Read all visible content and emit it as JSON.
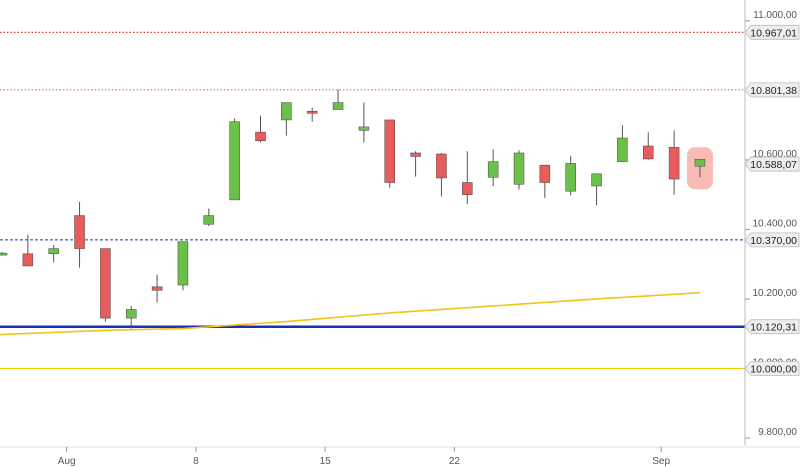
{
  "chart_data": {
    "type": "candlestick",
    "ylim": [
      9780,
      11060
    ],
    "y_ticks": [
      {
        "value": 9800,
        "label": "9.800,00"
      },
      {
        "value": 10000,
        "label": "10.000,00"
      },
      {
        "value": 10200,
        "label": "10.200,00"
      },
      {
        "value": 10400,
        "label": "10.400,00"
      },
      {
        "value": 10600,
        "label": "10.600,00"
      },
      {
        "value": 11000,
        "label": "11.000,00"
      }
    ],
    "x_ticks": [
      {
        "index": 2.5,
        "label": "Aug"
      },
      {
        "index": 7.5,
        "label": "8"
      },
      {
        "index": 12.5,
        "label": "15"
      },
      {
        "index": 17.5,
        "label": "22"
      },
      {
        "index": 25.5,
        "label": "Sep"
      }
    ],
    "candles": [
      {
        "o": 10330,
        "h": 10335,
        "l": 10325,
        "c": 10332
      },
      {
        "o": 10330,
        "h": 10385,
        "l": 10300,
        "c": 10295
      },
      {
        "o": 10330,
        "h": 10355,
        "l": 10305,
        "c": 10345
      },
      {
        "o": 10440,
        "h": 10480,
        "l": 10290,
        "c": 10345
      },
      {
        "o": 10345,
        "h": 10345,
        "l": 10135,
        "c": 10145
      },
      {
        "o": 10145,
        "h": 10180,
        "l": 10115,
        "c": 10170
      },
      {
        "o": 10235,
        "h": 10270,
        "l": 10190,
        "c": 10225
      },
      {
        "o": 10240,
        "h": 10365,
        "l": 10225,
        "c": 10365
      },
      {
        "o": 10415,
        "h": 10460,
        "l": 10410,
        "c": 10440
      },
      {
        "o": 10485,
        "h": 10720,
        "l": 10485,
        "c": 10710
      },
      {
        "o": 10680,
        "h": 10727,
        "l": 10650,
        "c": 10655
      },
      {
        "o": 10715,
        "h": 10760,
        "l": 10670,
        "c": 10765
      },
      {
        "o": 10740,
        "h": 10750,
        "l": 10710,
        "c": 10735
      },
      {
        "o": 10745,
        "h": 10802,
        "l": 10745,
        "c": 10765
      },
      {
        "o": 10685,
        "h": 10765,
        "l": 10650,
        "c": 10695
      },
      {
        "o": 10715,
        "h": 10715,
        "l": 10520,
        "c": 10535
      },
      {
        "o": 10620,
        "h": 10625,
        "l": 10552,
        "c": 10610
      },
      {
        "o": 10617,
        "h": 10620,
        "l": 10495,
        "c": 10548
      },
      {
        "o": 10535,
        "h": 10625,
        "l": 10473,
        "c": 10500
      },
      {
        "o": 10550,
        "h": 10630,
        "l": 10525,
        "c": 10595
      },
      {
        "o": 10530,
        "h": 10628,
        "l": 10515,
        "c": 10620
      },
      {
        "o": 10585,
        "h": 10585,
        "l": 10490,
        "c": 10535
      },
      {
        "o": 10510,
        "h": 10612,
        "l": 10498,
        "c": 10590
      },
      {
        "o": 10525,
        "h": 10560,
        "l": 10470,
        "c": 10560
      },
      {
        "o": 10595,
        "h": 10700,
        "l": 10595,
        "c": 10663
      },
      {
        "o": 10640,
        "h": 10680,
        "l": 10600,
        "c": 10603
      },
      {
        "o": 10636,
        "h": 10685,
        "l": 10500,
        "c": 10545
      },
      {
        "o": 10582,
        "h": 10602,
        "l": 10550,
        "c": 10602
      }
    ],
    "moving_average": {
      "color": "#f0c419",
      "points": [
        {
          "index": -1,
          "value": 10095
        },
        {
          "index": 4,
          "value": 10110
        },
        {
          "index": 7,
          "value": 10115
        },
        {
          "index": 11,
          "value": 10135
        },
        {
          "index": 15,
          "value": 10160
        },
        {
          "index": 19,
          "value": 10180
        },
        {
          "index": 23,
          "value": 10200
        },
        {
          "index": 27,
          "value": 10218
        }
      ]
    },
    "levels": [
      {
        "value": 10967.01,
        "label": "10.967,01",
        "color": "#dd2222",
        "style": "dotted",
        "width": 1.2
      },
      {
        "value": 10801.38,
        "label": "10.801,38",
        "color": "#dd2222",
        "style": "dotted",
        "width": 0.8
      },
      {
        "value": 10588.07,
        "label": "10.588,07",
        "color": "none",
        "style": "none",
        "width": 0
      },
      {
        "value": 10370.0,
        "label": "10.370,00",
        "color": "#1a3aa8",
        "style": "dashed",
        "width": 1
      },
      {
        "value": 10120.31,
        "label": "10.120,31",
        "color": "#1a2fb8",
        "style": "solid",
        "width": 2.5
      },
      {
        "value": 10000.0,
        "label": "10.000,00",
        "color": "#f0d000",
        "style": "solid",
        "width": 1
      }
    ],
    "highlight_candle_index": 27,
    "colors": {
      "up": "#6cc04a",
      "down": "#e85c5c",
      "wick": "#555555",
      "highlight": "#f7b0a8",
      "tick": "#999999"
    }
  }
}
